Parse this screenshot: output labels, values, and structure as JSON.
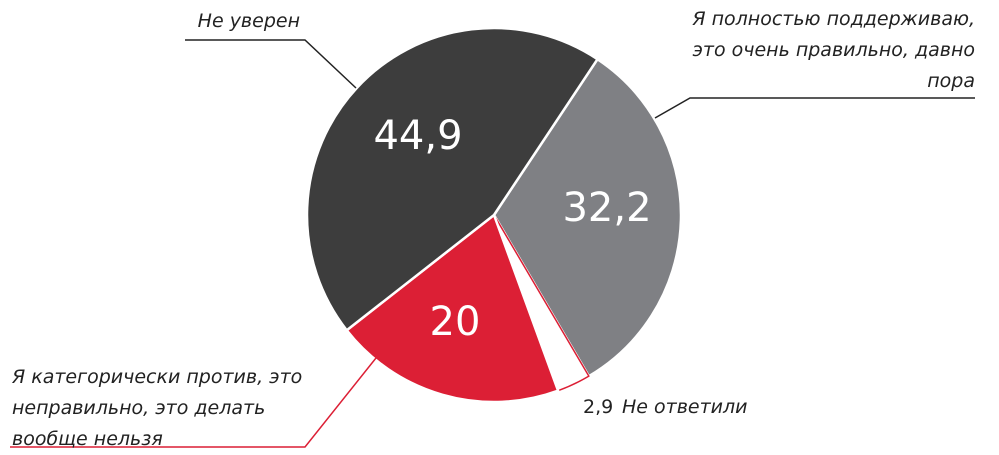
{
  "chart_data": {
    "type": "pie",
    "categories": [
      "Я полностью поддерживаю, это очень правильно, давно пора",
      "Не ответили",
      "Я категорически против, это неправильно, это делать вообще нельзя",
      "Не уверен"
    ],
    "values": [
      32.2,
      2.9,
      20,
      44.9
    ],
    "value_labels": [
      "32,2",
      "2,9",
      "20",
      "44,9"
    ],
    "colors": [
      "#7f8084",
      "#ffffff",
      "#dc1f35",
      "#3d3d3d"
    ]
  }
}
